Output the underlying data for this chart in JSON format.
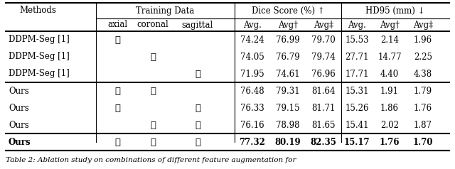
{
  "rows": [
    {
      "method": "DDPM-Seg [1]",
      "axial": true,
      "coronal": false,
      "sagittal": false,
      "d1": "74.24",
      "d2": "76.99",
      "d3": "79.70",
      "h1": "15.53",
      "h2": "2.14",
      "h3": "1.96",
      "bold": false,
      "sep_below": false,
      "thick_below": false
    },
    {
      "method": "DDPM-Seg [1]",
      "axial": false,
      "coronal": true,
      "sagittal": false,
      "d1": "74.05",
      "d2": "76.79",
      "d3": "79.74",
      "h1": "27.71",
      "h2": "14.77",
      "h3": "2.25",
      "bold": false,
      "sep_below": false,
      "thick_below": false
    },
    {
      "method": "DDPM-Seg [1]",
      "axial": false,
      "coronal": false,
      "sagittal": true,
      "d1": "71.95",
      "d2": "74.61",
      "d3": "76.96",
      "h1": "17.71",
      "h2": "4.40",
      "h3": "4.38",
      "bold": false,
      "sep_below": false,
      "thick_below": true
    },
    {
      "method": "Ours",
      "axial": true,
      "coronal": true,
      "sagittal": false,
      "d1": "76.48",
      "d2": "79.31",
      "d3": "81.64",
      "h1": "15.31",
      "h2": "1.91",
      "h3": "1.79",
      "bold": false,
      "sep_below": false,
      "thick_below": false
    },
    {
      "method": "Ours",
      "axial": true,
      "coronal": false,
      "sagittal": true,
      "d1": "76.33",
      "d2": "79.15",
      "d3": "81.71",
      "h1": "15.26",
      "h2": "1.86",
      "h3": "1.76",
      "bold": false,
      "sep_below": false,
      "thick_below": false
    },
    {
      "method": "Ours",
      "axial": false,
      "coronal": true,
      "sagittal": true,
      "d1": "76.16",
      "d2": "78.98",
      "d3": "81.65",
      "h1": "15.41",
      "h2": "2.02",
      "h3": "1.87",
      "bold": false,
      "sep_below": false,
      "thick_below": true
    },
    {
      "method": "Ours",
      "axial": true,
      "coronal": true,
      "sagittal": true,
      "d1": "77.32",
      "d2": "80.19",
      "d3": "82.35",
      "h1": "15.17",
      "h2": "1.76",
      "h3": "1.70",
      "bold": true,
      "sep_below": false,
      "thick_below": true
    }
  ],
  "caption": "Table 2: Ablation study on combinations of different feature augmentation for"
}
